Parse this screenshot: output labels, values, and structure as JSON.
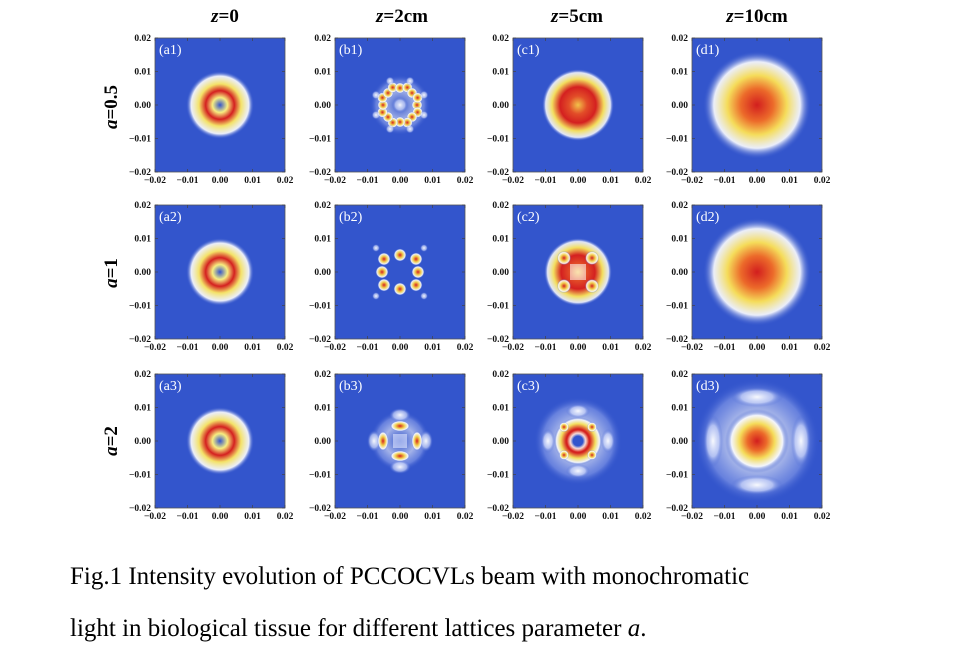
{
  "column_headers": [
    {
      "var": "z",
      "rest": "=0"
    },
    {
      "var": "z",
      "rest": "=2cm"
    },
    {
      "var": "z",
      "rest": "=5cm"
    },
    {
      "var": "z",
      "rest": "=10cm"
    }
  ],
  "row_headers": [
    {
      "var": "a",
      "rest": "=0.5"
    },
    {
      "var": "a",
      "rest": "=1"
    },
    {
      "var": "a",
      "rest": "=2"
    }
  ],
  "panel_labels": [
    [
      "(a1)",
      "(b1)",
      "(c1)",
      "(d1)"
    ],
    [
      "(a2)",
      "(b2)",
      "(c2)",
      "(d2)"
    ],
    [
      "(a3)",
      "(b3)",
      "(c3)",
      "(d3)"
    ]
  ],
  "tick_labels": [
    "−0.02",
    "−0.01",
    "0.00",
    "0.01",
    "0.02"
  ],
  "colors": {
    "background": "#3355cc",
    "low": "#ffffff",
    "mid": "#f2e35a",
    "high": "#d02020"
  },
  "caption": {
    "line1": "Fig.1 Intensity evolution of PCCOCVLs beam with monochromatic",
    "line2_prefix": "light in biological tissue for different lattices parameter ",
    "line2_var": "a",
    "line2_suffix": "."
  }
}
